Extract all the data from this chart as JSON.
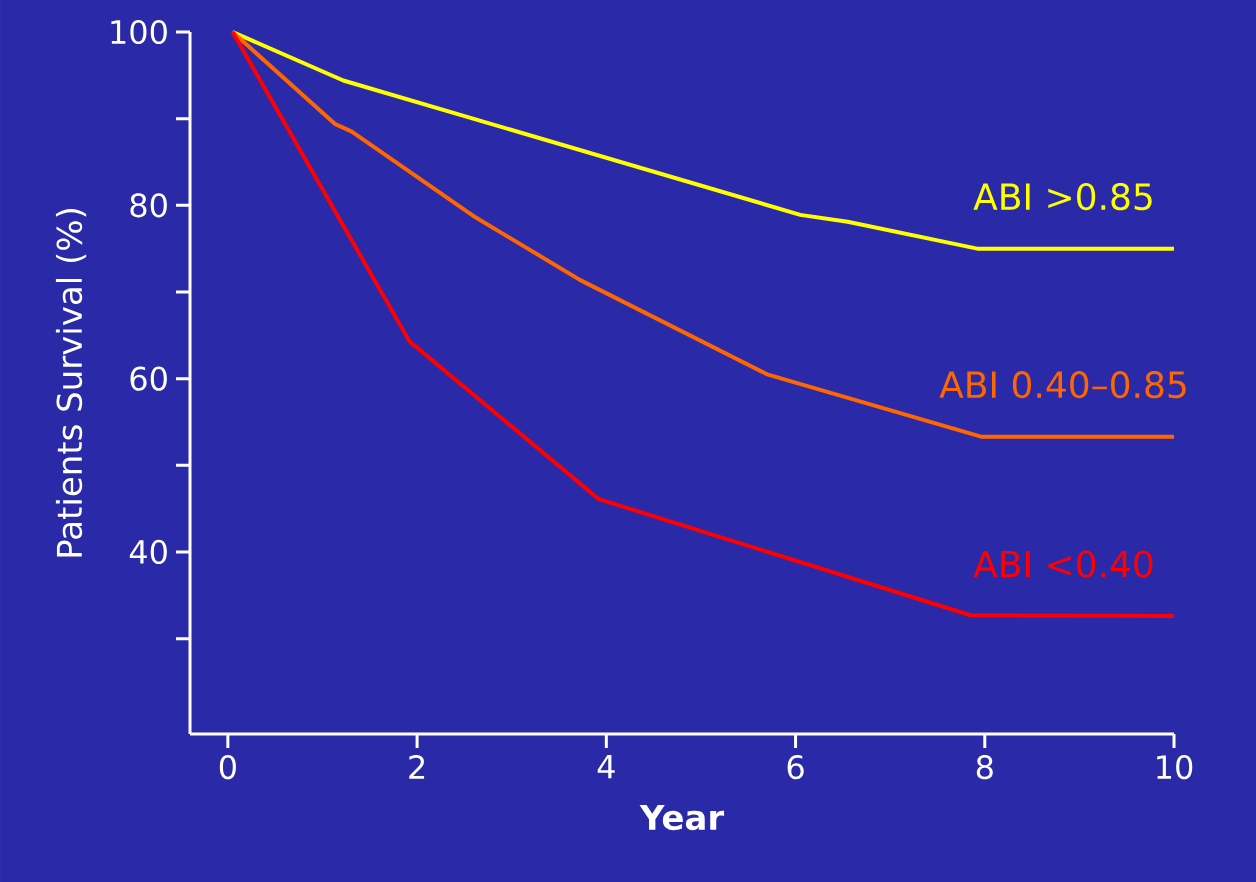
{
  "chart_data": {
    "type": "line",
    "xlabel": "Year",
    "ylabel": "Patients Survival (%)",
    "marker": "none",
    "legend": false,
    "xlim": [
      -0.4,
      10
    ],
    "ylim": [
      19,
      100
    ],
    "xticks": [
      0,
      2,
      4,
      6,
      8,
      10
    ],
    "yticks": [
      {
        "value": 30,
        "label": null
      },
      40,
      {
        "value": 50,
        "label": null
      },
      60,
      {
        "value": 70,
        "label": null
      },
      80,
      {
        "value": 90,
        "label": null
      },
      100
    ],
    "series": [
      {
        "name": "ABI >0.85",
        "color": "#ffff00",
        "x": [
          0.05,
          1.22,
          6.05,
          6.55,
          7.92,
          10
        ],
        "values": [
          100,
          94.4,
          78.9,
          78.1,
          75.0,
          75.0
        ]
      },
      {
        "name": "ABI 0.40–0.85",
        "color": "#ff6600",
        "x": [
          0.05,
          1.13,
          1.31,
          2.59,
          3.72,
          5.7,
          7.96,
          10
        ],
        "values": [
          100,
          89.4,
          88.5,
          78.8,
          71.4,
          60.5,
          53.3,
          53.3
        ]
      },
      {
        "name": "ABI <0.40",
        "color": "#ff0000",
        "x": [
          0.05,
          1.92,
          3.92,
          7.85,
          10
        ],
        "values": [
          100,
          64.3,
          46.1,
          32.7,
          32.6
        ]
      }
    ]
  }
}
